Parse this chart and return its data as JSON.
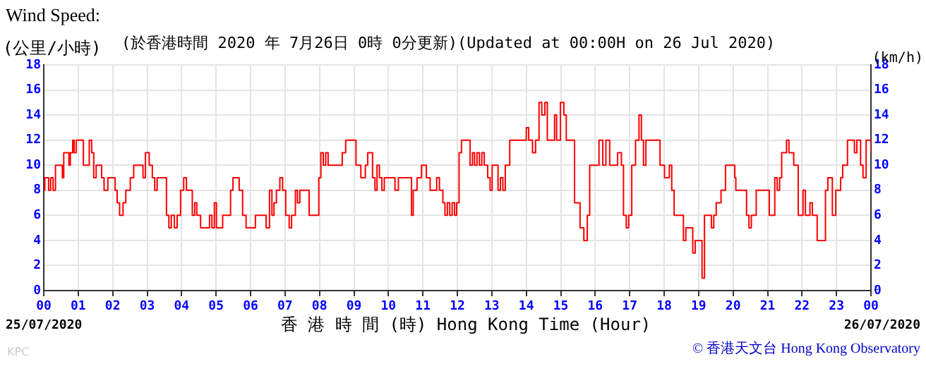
{
  "chart_data": {
    "type": "step",
    "title": "Wind Speed:",
    "subtitle": "(於香港時間 2020 年 7月26日 0時 0分更新)(Updated at 00:00H on 26 Jul 2020)",
    "ylabel": "(公里/小時)",
    "y2label": "(km/h)",
    "xlabel": "香 港 時 間 (時) Hong Kong Time (Hour)",
    "annotations": [
      "25/07/2020",
      "26/07/2020",
      "© 香港天文台 Hong Kong Observatory",
      "KPC"
    ],
    "x": [
      0,
      0.03,
      0.14,
      0.2,
      0.27,
      0.34,
      0.48,
      0.54,
      0.58,
      0.71,
      0.73,
      0.77,
      0.84,
      0.88,
      0.94,
      1.11,
      1.15,
      1.28,
      1.32,
      1.39,
      1.45,
      1.52,
      1.63,
      1.68,
      1.75,
      1.86,
      2.0,
      2.07,
      2.13,
      2.2,
      2.3,
      2.38,
      2.51,
      2.61,
      2.81,
      2.88,
      2.95,
      3.06,
      3.15,
      3.22,
      3.29,
      3.49,
      3.56,
      3.63,
      3.7,
      3.79,
      3.87,
      3.97,
      4.06,
      4.14,
      4.24,
      4.31,
      4.38,
      4.44,
      4.55,
      4.71,
      4.81,
      4.88,
      4.95,
      5.01,
      5.12,
      5.19,
      5.33,
      5.42,
      5.49,
      5.6,
      5.67,
      5.77,
      5.87,
      6.07,
      6.14,
      6.41,
      6.45,
      6.55,
      6.62,
      6.68,
      6.75,
      6.85,
      6.93,
      7.02,
      7.12,
      7.19,
      7.3,
      7.36,
      7.43,
      7.64,
      7.7,
      7.91,
      7.98,
      8.04,
      8.11,
      8.18,
      8.25,
      8.59,
      8.66,
      8.76,
      8.99,
      9.06,
      9.2,
      9.27,
      9.33,
      9.4,
      9.47,
      9.54,
      9.61,
      9.67,
      9.74,
      9.81,
      9.88,
      10.01,
      10.15,
      10.19,
      10.29,
      10.56,
      10.67,
      10.72,
      10.83,
      10.96,
      11.03,
      11.1,
      11.21,
      11.35,
      11.4,
      11.48,
      11.58,
      11.64,
      11.71,
      11.78,
      11.85,
      11.92,
      11.98,
      12.05,
      12.12,
      12.27,
      12.37,
      12.44,
      12.5,
      12.57,
      12.64,
      12.71,
      12.78,
      12.88,
      12.95,
      13.01,
      13.12,
      13.18,
      13.25,
      13.32,
      13.39,
      13.52,
      13.93,
      14.0,
      14.07,
      14.18,
      14.27,
      14.37,
      14.45,
      14.54,
      14.61,
      14.78,
      14.82,
      14.88,
      14.99,
      15.09,
      15.16,
      15.32,
      15.4,
      15.56,
      15.67,
      15.77,
      15.84,
      16.04,
      16.11,
      16.22,
      16.31,
      16.42,
      16.59,
      16.65,
      16.76,
      16.82,
      16.9,
      16.97,
      17.06,
      17.17,
      17.27,
      17.34,
      17.4,
      17.47,
      17.81,
      17.88,
      18.01,
      18.15,
      18.22,
      18.29,
      18.49,
      18.56,
      18.63,
      18.76,
      18.83,
      18.9,
      19.03,
      19.1,
      19.17,
      19.31,
      19.37,
      19.44,
      19.51,
      19.65,
      19.78,
      19.92,
      20.05,
      20.08,
      20.33,
      20.39,
      20.46,
      20.53,
      20.67,
      21.01,
      21.05,
      21.14,
      21.21,
      21.28,
      21.35,
      21.41,
      21.55,
      21.62,
      21.76,
      21.89,
      22.03,
      22.1,
      22.23,
      22.3,
      22.37,
      22.44,
      22.57,
      22.68,
      22.75,
      22.88,
      22.98,
      23.12,
      23.18,
      23.32,
      23.48,
      23.52,
      23.59,
      23.7,
      23.77,
      23.86,
      24.0
    ],
    "series": [
      {
        "color": "#ff0000",
        "values": [
          8,
          9,
          8,
          9,
          8,
          10,
          10,
          9,
          11,
          11,
          10,
          11,
          12,
          11,
          12,
          12,
          10,
          10,
          12,
          11,
          9,
          10,
          10,
          9,
          8,
          9,
          9,
          8,
          7,
          6,
          7,
          8,
          9,
          10,
          10,
          9,
          11,
          10,
          9,
          8,
          9,
          9,
          6,
          5,
          6,
          5,
          6,
          8,
          9,
          8,
          8,
          6,
          7,
          6,
          5,
          5,
          6,
          5,
          7,
          5,
          5,
          6,
          6,
          8,
          9,
          9,
          8,
          6,
          5,
          5,
          6,
          6,
          5,
          8,
          6,
          7,
          8,
          9,
          8,
          6,
          5,
          6,
          8,
          7,
          8,
          8,
          6,
          6,
          9,
          11,
          10,
          11,
          10,
          10,
          11,
          12,
          12,
          10,
          9,
          9,
          10,
          11,
          11,
          9,
          8,
          10,
          9,
          8,
          9,
          9,
          9,
          8,
          9,
          9,
          6,
          8,
          9,
          10,
          10,
          9,
          8,
          8,
          9,
          8,
          7,
          6,
          7,
          6,
          7,
          6,
          7,
          11,
          12,
          12,
          10,
          11,
          10,
          11,
          10,
          11,
          10,
          9,
          8,
          10,
          10,
          8,
          9,
          8,
          10,
          12,
          12,
          13,
          12,
          11,
          12,
          15,
          14,
          15,
          12,
          12,
          14,
          12,
          15,
          14,
          12,
          12,
          7,
          5,
          4,
          6,
          10,
          10,
          12,
          10,
          12,
          10,
          10,
          11,
          10,
          6,
          5,
          6,
          10,
          12,
          14,
          12,
          10,
          12,
          12,
          10,
          9,
          10,
          8,
          6,
          6,
          4,
          5,
          5,
          3,
          4,
          4,
          1,
          6,
          6,
          5,
          6,
          7,
          8,
          10,
          10,
          9,
          8,
          8,
          6,
          5,
          6,
          8,
          8,
          6,
          6,
          9,
          8,
          9,
          11,
          12,
          11,
          10,
          6,
          8,
          6,
          7,
          6,
          6,
          4,
          4,
          8,
          9,
          6,
          8,
          9,
          10,
          12,
          12,
          11,
          12,
          10,
          9,
          12,
          11
        ]
      }
    ],
    "xlim": [
      0,
      24
    ],
    "xticks": [
      {
        "value": 0,
        "label": "00"
      },
      {
        "value": 1,
        "label": "01"
      },
      {
        "value": 2,
        "label": "02"
      },
      {
        "value": 3,
        "label": "03"
      },
      {
        "value": 4,
        "label": "04"
      },
      {
        "value": 5,
        "label": "05"
      },
      {
        "value": 6,
        "label": "06"
      },
      {
        "value": 7,
        "label": "07"
      },
      {
        "value": 8,
        "label": "08"
      },
      {
        "value": 9,
        "label": "09"
      },
      {
        "value": 10,
        "label": "10"
      },
      {
        "value": 11,
        "label": "11"
      },
      {
        "value": 12,
        "label": "12"
      },
      {
        "value": 13,
        "label": "13"
      },
      {
        "value": 14,
        "label": "14"
      },
      {
        "value": 15,
        "label": "15"
      },
      {
        "value": 16,
        "label": "16"
      },
      {
        "value": 17,
        "label": "17"
      },
      {
        "value": 18,
        "label": "18"
      },
      {
        "value": 19,
        "label": "19"
      },
      {
        "value": 20,
        "label": "20"
      },
      {
        "value": 21,
        "label": "21"
      },
      {
        "value": 22,
        "label": "22"
      },
      {
        "value": 23,
        "label": "23"
      },
      {
        "value": 24,
        "label": "00"
      }
    ],
    "ylim": [
      0,
      18
    ],
    "yticks": [
      0,
      2,
      4,
      6,
      8,
      10,
      12,
      14,
      16,
      18
    ],
    "y2lim": [
      0,
      18
    ],
    "y2ticks": [
      0,
      2,
      4,
      6,
      8,
      10,
      12,
      14,
      16,
      18
    ],
    "grid": true,
    "legend": false,
    "marker": "none",
    "line_style": "solid"
  }
}
